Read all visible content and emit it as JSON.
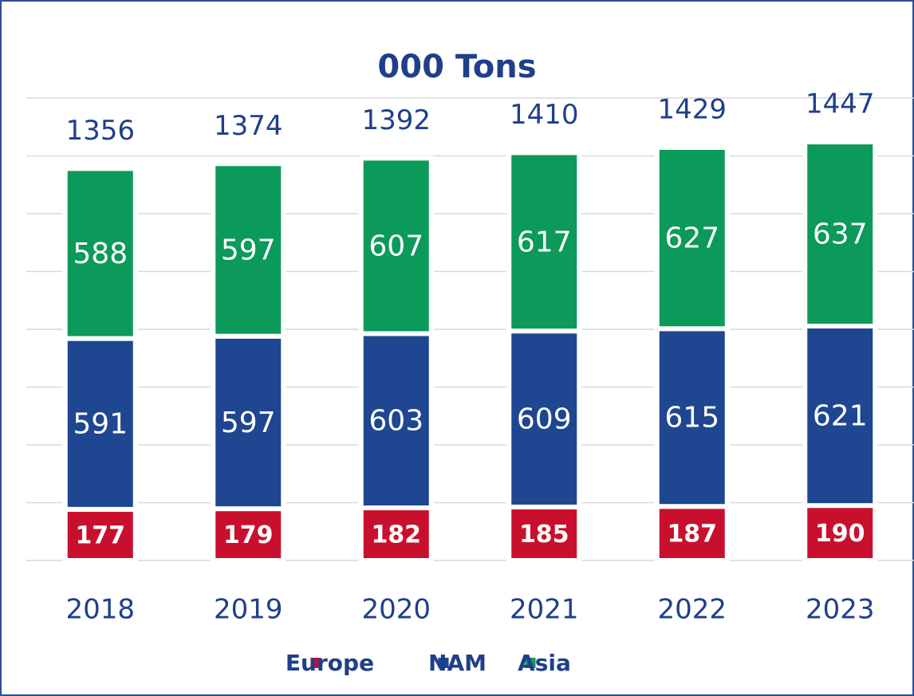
{
  "chart_data": {
    "type": "stacked_bar",
    "title": "000 Tons",
    "categories": [
      "2018",
      "2019",
      "2020",
      "2021",
      "2022",
      "2023"
    ],
    "series": [
      {
        "name": "Europe",
        "color": "#c8102e",
        "values": [
          177,
          179,
          182,
          185,
          187,
          190
        ]
      },
      {
        "name": "NAM",
        "color": "#1f4690",
        "values": [
          591,
          597,
          603,
          609,
          615,
          621
        ]
      },
      {
        "name": "Asia",
        "color": "#0b9a5a",
        "values": [
          588,
          597,
          607,
          617,
          627,
          637
        ]
      }
    ],
    "totals": [
      1356,
      1374,
      1392,
      1410,
      1429,
      1447
    ],
    "ylim": [
      0,
      1600
    ],
    "yticks": [
      0,
      200,
      400,
      600,
      800,
      1000,
      1200,
      1400,
      1600
    ],
    "grid": true,
    "legend": "bottom"
  }
}
